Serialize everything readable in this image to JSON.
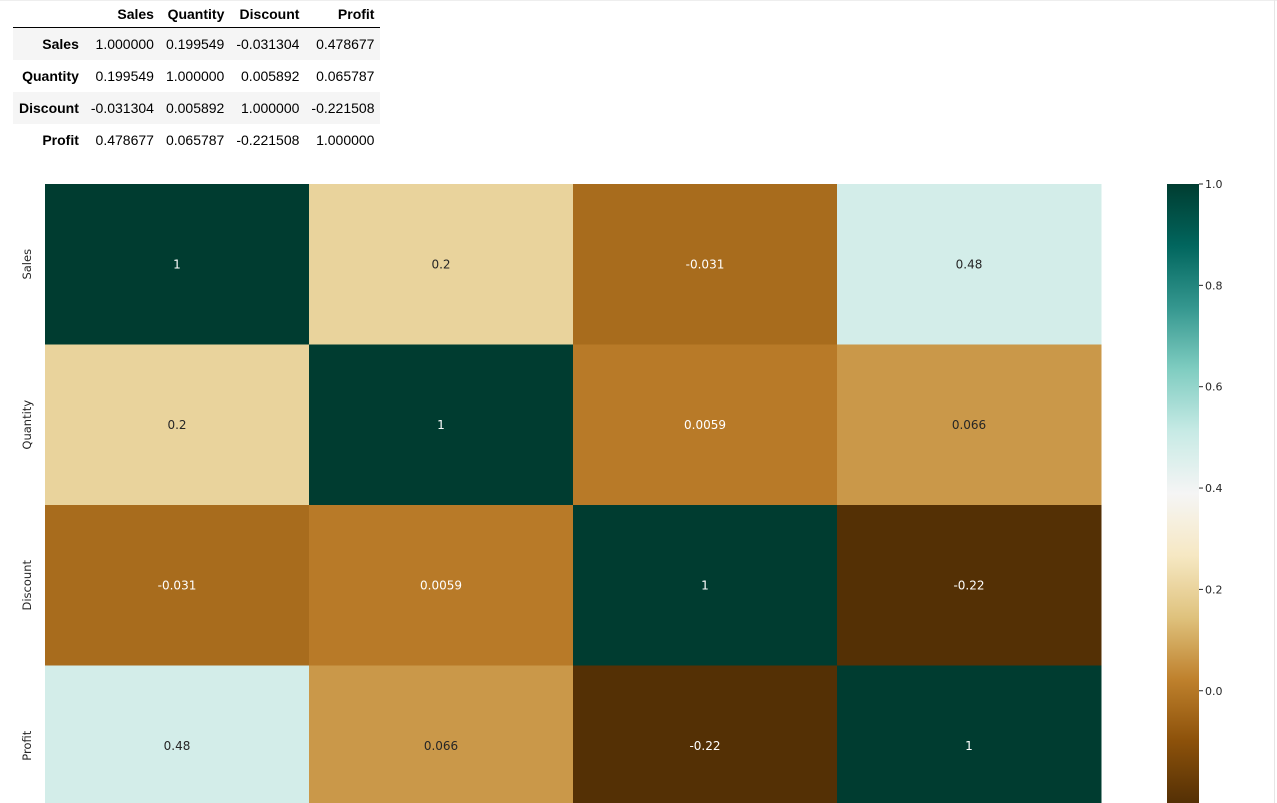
{
  "table": {
    "columns": [
      "Sales",
      "Quantity",
      "Discount",
      "Profit"
    ],
    "rows": [
      {
        "label": "Sales",
        "values": [
          "1.000000",
          "0.199549",
          "-0.031304",
          "0.478677"
        ]
      },
      {
        "label": "Quantity",
        "values": [
          "0.199549",
          "1.000000",
          "0.005892",
          "0.065787"
        ]
      },
      {
        "label": "Discount",
        "values": [
          "-0.031304",
          "0.005892",
          "1.000000",
          "-0.221508"
        ]
      },
      {
        "label": "Profit",
        "values": [
          "0.478677",
          "0.065787",
          "-0.221508",
          "1.000000"
        ]
      }
    ]
  },
  "chart_data": {
    "type": "heatmap",
    "colormap": "BrBG",
    "variables": [
      "Sales",
      "Quantity",
      "Discount",
      "Profit"
    ],
    "matrix": [
      [
        1.0,
        0.199549,
        -0.031304,
        0.478677
      ],
      [
        0.199549,
        1.0,
        0.005892,
        0.065787
      ],
      [
        -0.031304,
        0.005892,
        1.0,
        -0.221508
      ],
      [
        0.478677,
        0.065787,
        -0.221508,
        1.0
      ]
    ],
    "annotations": [
      [
        "1",
        "0.2",
        "-0.031",
        "0.48"
      ],
      [
        "0.2",
        "1",
        "0.0059",
        "0.066"
      ],
      [
        "-0.031",
        "0.0059",
        "1",
        "-0.22"
      ],
      [
        "0.48",
        "0.066",
        "-0.22",
        "1"
      ]
    ],
    "colorbar": {
      "vmin": -0.221508,
      "vmax": 1.0,
      "ticks": [
        0.0,
        0.2,
        0.4,
        0.6,
        0.8,
        1.0
      ],
      "tick_labels": [
        "0.0",
        "0.2",
        "0.4",
        "0.6",
        "0.8",
        "1.0"
      ]
    },
    "ylabels": [
      "Sales",
      "Quantity",
      "Discount",
      "Profit"
    ],
    "title": "",
    "xlabel": "",
    "ylabel": ""
  }
}
